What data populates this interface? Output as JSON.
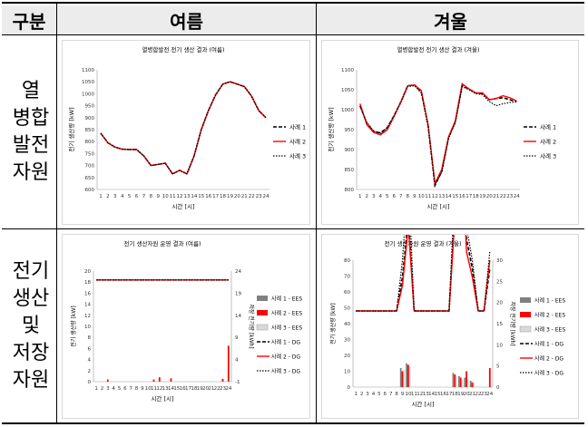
{
  "table": {
    "headers": {
      "category": "구분",
      "summer": "여름",
      "winter": "겨울"
    },
    "row1_label": [
      "열",
      "병합",
      "발전",
      "자원"
    ],
    "row2_label": [
      "전기",
      "생산",
      "및",
      "저장",
      "자원"
    ]
  },
  "panels": [
    {
      "id": "chp-summer",
      "title": "열병합발전 전기 생산 결과 (여름)",
      "ylabel": "전기 생산량 [kW]",
      "xlabel": "시간 [시]",
      "ylim": [
        600,
        1100
      ],
      "yticks": [
        "1100",
        "1050",
        "1000",
        "950",
        "900",
        "850",
        "800",
        "750",
        "700",
        "650",
        "600"
      ],
      "legend": [
        "사례 1",
        "사례 2",
        "사례 3"
      ]
    },
    {
      "id": "chp-winter",
      "title": "열병합발전 전기 생산 결과 (겨울)",
      "ylabel": "전기 생산량 [kW]",
      "xlabel": "시간 [시]",
      "ylim": [
        800,
        1100
      ],
      "yticks": [
        "1100",
        "1050",
        "1000",
        "950",
        "900",
        "850",
        "800"
      ],
      "legend": [
        "사례 1",
        "사례 2",
        "사례 3"
      ]
    },
    {
      "id": "res-summer",
      "title": "전기 생산자원 운영 결과 (여름)",
      "ylabel": "전기 생산량 [kW]",
      "y2label": "저장 전기량 [kWh]",
      "xlabel": "시간 [시]",
      "ylim": [
        0,
        20
      ],
      "yticks": [
        "20",
        "18",
        "16",
        "14",
        "12",
        "10",
        "8",
        "6",
        "4",
        "2",
        "0"
      ],
      "y2ticks": [
        "24",
        "19",
        "14",
        "9",
        "4",
        "-1"
      ],
      "legend": [
        "사례 1 - EES",
        "사례 2 - EES",
        "사례 3 - EES",
        "사례 1 - DG",
        "사례 2 - DG",
        "사례 3 - DG"
      ]
    },
    {
      "id": "res-winter",
      "title": "전기 생산자원 운영 결과 (겨울)",
      "ylabel": "전기 생산량 [kW]",
      "y2label": "저장 전기량 [kWh]",
      "xlabel": "시간 [시]",
      "ylim": [
        0,
        80
      ],
      "yticks": [
        "80",
        "70",
        "60",
        "50",
        "40",
        "30",
        "20",
        "10",
        "0"
      ],
      "y2ticks": [
        "30",
        "25",
        "20",
        "15",
        "10",
        "5",
        "0"
      ],
      "legend": [
        "사례 1 - EES",
        "사례 2 - EES",
        "사례 3 - EES",
        "사례 1 - DG",
        "사례 2 - DG",
        "사례 3 - DG"
      ]
    }
  ],
  "colors": {
    "case1": "#000000",
    "case2": "#ff0000",
    "case3": "#000000",
    "case1_bar": "#808080",
    "case2_bar": "#ff0000",
    "case3_bar": "#d9d9d9"
  },
  "chart_data": [
    {
      "type": "line",
      "title": "열병합발전 전기 생산 결과 (여름)",
      "x": [
        1,
        2,
        3,
        4,
        5,
        6,
        7,
        8,
        9,
        10,
        11,
        12,
        13,
        14,
        15,
        16,
        17,
        18,
        19,
        20,
        21,
        22,
        23,
        24
      ],
      "ylim": [
        600,
        1100
      ],
      "series": [
        {
          "name": "사례 1",
          "values": [
            835,
            795,
            777,
            768,
            767,
            767,
            740,
            700,
            705,
            710,
            665,
            680,
            665,
            740,
            850,
            930,
            995,
            1040,
            1050,
            1040,
            1030,
            990,
            930,
            900
          ]
        },
        {
          "name": "사례 2",
          "values": [
            835,
            795,
            777,
            768,
            767,
            767,
            740,
            700,
            705,
            710,
            665,
            680,
            665,
            740,
            850,
            930,
            995,
            1040,
            1050,
            1040,
            1030,
            990,
            930,
            900
          ]
        },
        {
          "name": "사례 3",
          "values": [
            835,
            795,
            777,
            768,
            767,
            767,
            740,
            700,
            705,
            710,
            665,
            680,
            665,
            740,
            850,
            930,
            995,
            1040,
            1050,
            1040,
            1030,
            990,
            930,
            900
          ]
        }
      ]
    },
    {
      "type": "line",
      "title": "열병합발전 전기 생산 결과 (겨울)",
      "x": [
        1,
        2,
        3,
        4,
        5,
        6,
        7,
        8,
        9,
        10,
        11,
        12,
        13,
        14,
        15,
        16,
        17,
        18,
        19,
        20,
        21,
        22,
        23,
        24
      ],
      "ylim": [
        800,
        1100
      ],
      "series": [
        {
          "name": "사례 1",
          "values": [
            1010,
            965,
            945,
            942,
            955,
            985,
            1020,
            1060,
            1062,
            1045,
            960,
            810,
            845,
            930,
            970,
            1060,
            1052,
            1042,
            1040,
            1025,
            1028,
            1030,
            1025,
            1020
          ]
        },
        {
          "name": "사례 2",
          "values": [
            1015,
            962,
            943,
            937,
            950,
            983,
            1020,
            1060,
            1062,
            1048,
            962,
            815,
            850,
            932,
            972,
            1065,
            1052,
            1042,
            1042,
            1025,
            1028,
            1035,
            1030,
            1022
          ]
        },
        {
          "name": "사례 3",
          "values": [
            1008,
            968,
            947,
            940,
            955,
            985,
            1018,
            1058,
            1060,
            1042,
            958,
            812,
            843,
            928,
            968,
            1058,
            1050,
            1040,
            1038,
            1020,
            1010,
            1015,
            1018,
            1020
          ]
        }
      ]
    },
    {
      "type": "bar",
      "title": "전기 생산자원 운영 결과 (여름)",
      "x": [
        1,
        2,
        3,
        4,
        5,
        6,
        7,
        8,
        9,
        10,
        11,
        12,
        13,
        14,
        15,
        16,
        17,
        18,
        19,
        20,
        21,
        22,
        23,
        24
      ],
      "ylim": [
        0,
        20
      ],
      "y2lim": [
        -1,
        24
      ],
      "bars": [
        {
          "name": "사례 1 - EES",
          "values": [
            0,
            0,
            0,
            0,
            0,
            0,
            0,
            0,
            0,
            0,
            0,
            0,
            0,
            0,
            0,
            0,
            0,
            0,
            0,
            0,
            0,
            0,
            0,
            0
          ]
        },
        {
          "name": "사례 2 - EES",
          "values": [
            0,
            0,
            0.4,
            0,
            0,
            0,
            0,
            0,
            0,
            0,
            0.4,
            0.8,
            0,
            0.6,
            0,
            0,
            0,
            0,
            0,
            0,
            0,
            0,
            0.5,
            6.5
          ]
        },
        {
          "name": "사례 3 - EES",
          "values": [
            0,
            0,
            0,
            0,
            0,
            0,
            0,
            0,
            0,
            0,
            0,
            0,
            0,
            0,
            0,
            0,
            0,
            0,
            0,
            0,
            0,
            0,
            0,
            0
          ]
        }
      ],
      "lines": [
        {
          "name": "사례 1 - DG",
          "values": [
            22,
            22,
            22,
            22,
            22,
            22,
            22,
            22,
            22,
            22,
            22,
            22,
            22,
            22,
            22,
            22,
            22,
            22,
            22,
            22,
            22,
            22,
            22,
            22
          ]
        },
        {
          "name": "사례 2 - DG",
          "values": [
            22,
            22,
            22,
            22,
            22,
            22,
            22,
            22,
            22,
            22,
            22,
            22,
            22,
            22,
            22,
            22,
            22,
            22,
            22,
            22,
            22,
            22,
            22,
            22
          ]
        },
        {
          "name": "사례 3 - DG",
          "values": [
            22,
            22,
            22,
            22,
            22,
            22,
            22,
            22,
            22,
            22,
            22,
            22,
            22,
            22,
            22,
            22,
            22,
            22,
            22,
            22,
            22,
            22,
            22,
            22
          ]
        }
      ]
    },
    {
      "type": "bar",
      "title": "전기 생산자원 운영 결과 (겨울)",
      "x": [
        1,
        2,
        3,
        4,
        5,
        6,
        7,
        8,
        9,
        10,
        11,
        12,
        13,
        14,
        15,
        16,
        17,
        18,
        19,
        20,
        21,
        22,
        23,
        24
      ],
      "ylim": [
        0,
        80
      ],
      "y2lim": [
        0,
        30
      ],
      "bars": [
        {
          "name": "사례 1 - EES",
          "values": [
            0,
            0,
            0,
            0,
            0,
            0,
            0,
            0,
            12,
            15,
            0,
            0,
            0,
            0,
            0,
            0,
            0,
            9,
            7,
            6,
            4,
            0,
            0,
            0
          ]
        },
        {
          "name": "사례 2 - EES",
          "values": [
            0,
            0,
            0,
            0,
            0,
            0,
            0,
            0,
            10,
            14,
            0,
            0,
            0,
            0,
            0,
            0,
            0,
            8,
            6,
            10,
            3,
            0,
            0,
            12
          ]
        },
        {
          "name": "사례 3 - EES",
          "values": [
            0,
            0,
            0,
            0,
            0,
            0,
            0,
            0,
            11,
            13,
            0,
            0,
            0,
            0,
            0,
            0,
            0,
            7,
            5,
            5,
            3,
            0,
            0,
            0
          ]
        }
      ],
      "lines": [
        {
          "name": "사례 1 - DG",
          "values": [
            18,
            18,
            18,
            18,
            18,
            18,
            18,
            18,
            26,
            40,
            18,
            18,
            18,
            18,
            18,
            18,
            18,
            42,
            60,
            35,
            28,
            18,
            18,
            28
          ]
        },
        {
          "name": "사례 2 - DG",
          "values": [
            18,
            18,
            18,
            18,
            18,
            18,
            18,
            18,
            24,
            38,
            18,
            18,
            18,
            18,
            18,
            18,
            18,
            40,
            64,
            32,
            26,
            18,
            18,
            30
          ]
        },
        {
          "name": "사례 3 - DG",
          "values": [
            18,
            18,
            18,
            18,
            18,
            18,
            18,
            18,
            30,
            50,
            18,
            18,
            18,
            18,
            18,
            18,
            18,
            48,
            68,
            38,
            30,
            18,
            18,
            32
          ]
        }
      ]
    }
  ]
}
